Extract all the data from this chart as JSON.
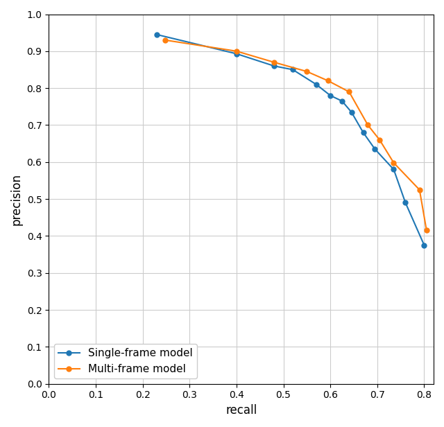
{
  "single_frame": {
    "recall": [
      0.23,
      0.4,
      0.48,
      0.52,
      0.57,
      0.6,
      0.625,
      0.645,
      0.67,
      0.695,
      0.735,
      0.76,
      0.8
    ],
    "precision": [
      0.945,
      0.893,
      0.86,
      0.85,
      0.81,
      0.78,
      0.765,
      0.735,
      0.68,
      0.635,
      0.58,
      0.49,
      0.375
    ]
  },
  "multi_frame": {
    "recall": [
      0.248,
      0.4,
      0.48,
      0.55,
      0.595,
      0.64,
      0.68,
      0.705,
      0.735,
      0.79,
      0.805
    ],
    "precision": [
      0.93,
      0.9,
      0.87,
      0.845,
      0.82,
      0.79,
      0.7,
      0.66,
      0.598,
      0.525,
      0.415
    ]
  },
  "single_color": "#1f77b4",
  "multi_color": "#ff7f0e",
  "single_label": "Single-frame model",
  "multi_label": "Multi-frame model",
  "xlabel": "recall",
  "ylabel": "precision",
  "xlim": [
    0.0,
    0.82
  ],
  "ylim": [
    0.0,
    1.0
  ],
  "xticks": [
    0.0,
    0.1,
    0.2,
    0.3,
    0.4,
    0.5,
    0.6,
    0.7,
    0.8
  ],
  "yticks": [
    0.0,
    0.1,
    0.2,
    0.3,
    0.4,
    0.5,
    0.6,
    0.7,
    0.8,
    0.9,
    1.0
  ],
  "grid_color": "#cccccc",
  "background_color": "#ffffff",
  "legend_loc": "lower left",
  "figwidth": 6.4,
  "figheight": 6.16,
  "dpi": 100,
  "marker_size": 5,
  "linewidth": 1.5,
  "xlabel_fontsize": 12,
  "ylabel_fontsize": 12,
  "legend_fontsize": 11
}
